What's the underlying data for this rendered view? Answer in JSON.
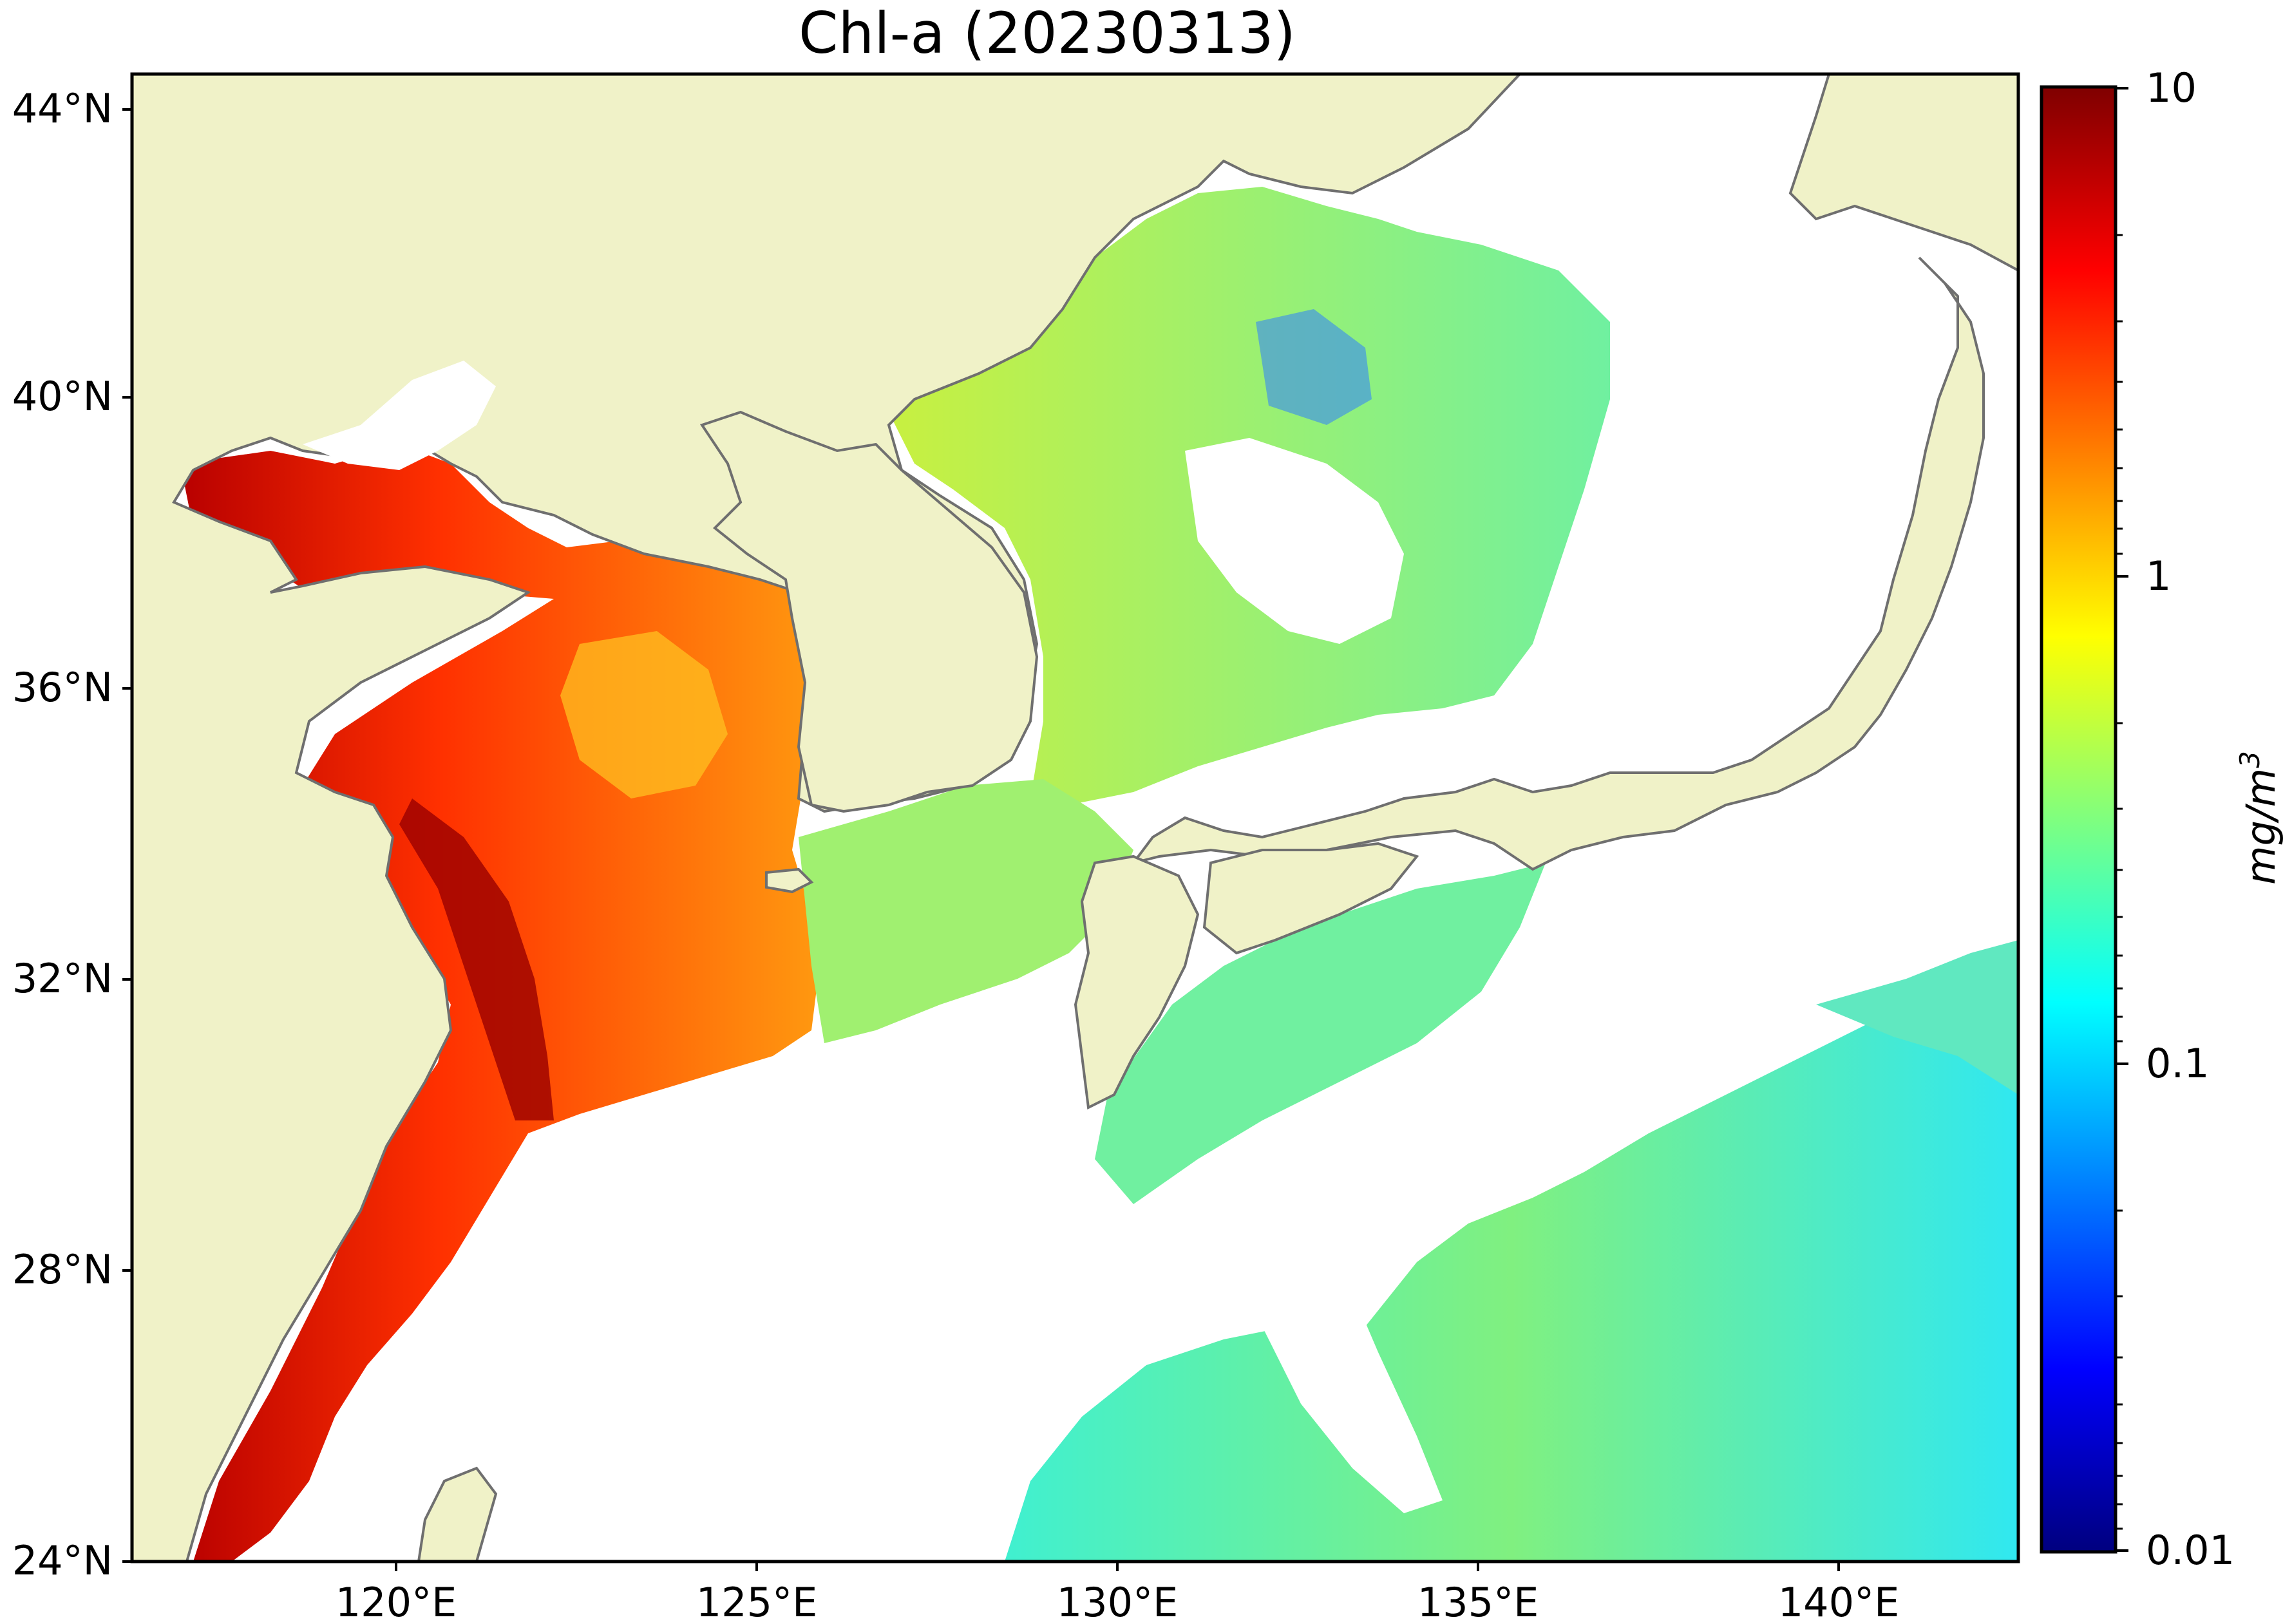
{
  "title": "Chl-a (20230313)",
  "map": {
    "lon_range": [
      116.0,
      143.0
    ],
    "lat_range": [
      24.0,
      44.5
    ],
    "land_color": "#f0f2c8",
    "coastline_color": "#6f6f6f",
    "no_data_color": "#ffffff"
  },
  "axes": {
    "x_ticks": [
      {
        "value": 120,
        "label": "120°E"
      },
      {
        "value": 125,
        "label": "125°E"
      },
      {
        "value": 130,
        "label": "130°E"
      },
      {
        "value": 135,
        "label": "135°E"
      },
      {
        "value": 140,
        "label": "140°E"
      }
    ],
    "y_ticks": [
      {
        "value": 24,
        "label": "24°N"
      },
      {
        "value": 28,
        "label": "28°N"
      },
      {
        "value": 32,
        "label": "32°N"
      },
      {
        "value": 36,
        "label": "36°N"
      },
      {
        "value": 40,
        "label": "40°N"
      },
      {
        "value": 44,
        "label": "44°N"
      }
    ]
  },
  "colorbar": {
    "scale": "log",
    "range": [
      0.01,
      10
    ],
    "ticks": [
      {
        "value": 10,
        "label": "10"
      },
      {
        "value": 1,
        "label": "1"
      },
      {
        "value": 0.1,
        "label": "0.1"
      },
      {
        "value": 0.01,
        "label": "0.01"
      }
    ],
    "unit_label": "mg/m",
    "unit_sup": "3",
    "colormap": [
      "#00007f",
      "#0000ff",
      "#007fff",
      "#00ffff",
      "#7fff7f",
      "#ffff00",
      "#ff7f00",
      "#ff0000",
      "#7f0000"
    ]
  }
}
